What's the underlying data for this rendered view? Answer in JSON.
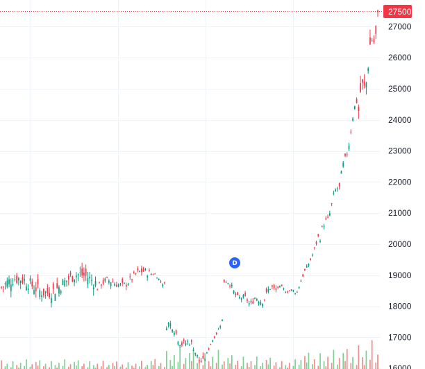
{
  "chart_data": {
    "type": "candlestick",
    "y_axis": {
      "ticks": [
        16000,
        17000,
        18000,
        19000,
        20000,
        21000,
        22000,
        23000,
        24000,
        25000,
        26000,
        27000
      ],
      "tick_labels": [
        "16000",
        "17000",
        "18000",
        "19000",
        "20000",
        "21000",
        "22000",
        "23000",
        "24000",
        "25000",
        "26000",
        "27000"
      ],
      "range": [
        15900,
        27850
      ],
      "side": "right"
    },
    "grid": true,
    "last_price": {
      "value": 27500,
      "label": "27500",
      "color": "#f23645"
    },
    "dividend_marker": {
      "label": "D",
      "color": "#2962ff",
      "near_price": 19400
    },
    "colors": {
      "up": "#089981",
      "down": "#f23645",
      "volume_up": "#7fcf95",
      "volume_down": "#f08c8c",
      "grid": "#f0f3fa"
    },
    "segments": [
      {
        "count": 50,
        "start": 18600,
        "end": 18800,
        "amp": 520,
        "period": 32,
        "vol": 70
      },
      {
        "count": 28,
        "start": 18600,
        "end": 19050,
        "amp": 300,
        "period": 18,
        "vol": 60
      },
      {
        "count": 8,
        "start": 19050,
        "end": 18750,
        "amp": 120,
        "period": 8,
        "vol": 80
      },
      {
        "count": 20,
        "start": 17400,
        "end": 16300,
        "amp": 300,
        "period": 10,
        "vol": 160
      },
      {
        "count": 10,
        "start": 16300,
        "end": 17600,
        "amp": 120,
        "period": 10,
        "vol": 140
      },
      {
        "count": 14,
        "start": 18800,
        "end": 18050,
        "amp": 220,
        "period": 9,
        "vol": 110
      },
      {
        "count": 14,
        "start": 18050,
        "end": 18600,
        "amp": 260,
        "period": 8,
        "vol": 90
      },
      {
        "count": 10,
        "start": 18600,
        "end": 18450,
        "amp": 100,
        "period": 6,
        "vol": 70
      },
      {
        "count": 12,
        "start": 18450,
        "end": 20200,
        "amp": 150,
        "period": 10,
        "vol": 130
      },
      {
        "count": 10,
        "start": 20200,
        "end": 21800,
        "amp": 250,
        "period": 6,
        "vol": 140
      },
      {
        "count": 10,
        "start": 21800,
        "end": 24600,
        "amp": 300,
        "period": 6,
        "vol": 160
      },
      {
        "count": 11,
        "start": 24300,
        "end": 27300,
        "amp": 650,
        "period": 5,
        "vol": 210
      }
    ],
    "volume_sample": [
      20,
      0,
      6,
      12,
      0,
      4,
      18,
      0,
      9,
      3,
      14,
      0,
      7,
      22,
      0,
      5,
      11,
      0,
      16,
      8
    ]
  }
}
